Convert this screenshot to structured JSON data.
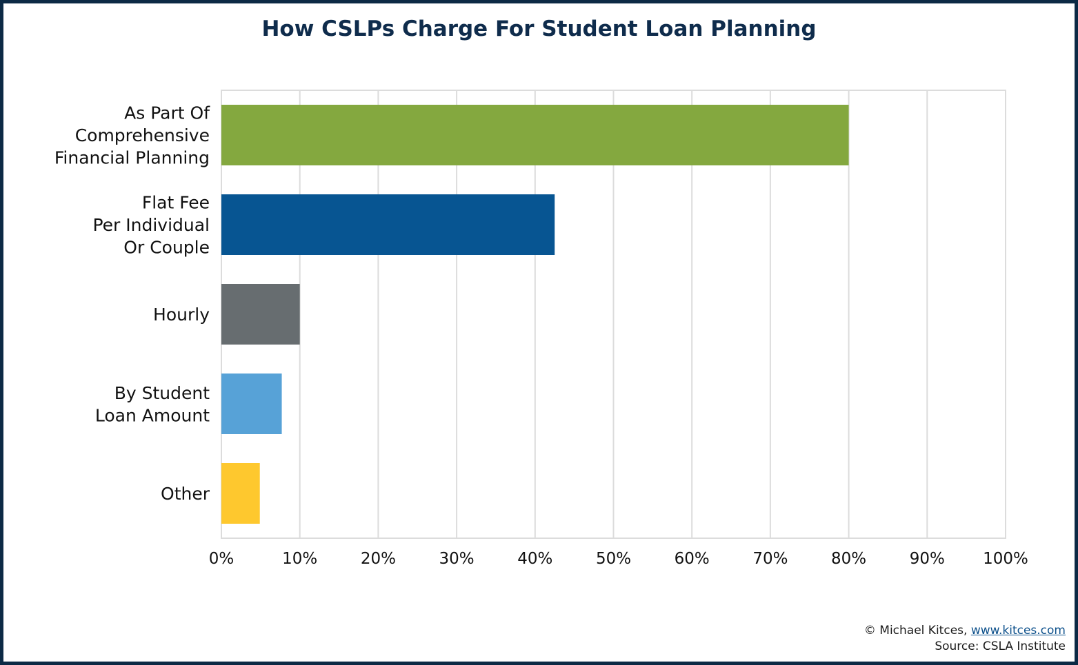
{
  "chart_data": {
    "type": "bar",
    "orientation": "horizontal",
    "title": "How CSLPs Charge For Student Loan Planning",
    "categories": [
      [
        "As Part Of",
        "Comprehensive",
        "Financial Planning"
      ],
      [
        "Flat Fee",
        "Per Individual",
        "Or Couple"
      ],
      [
        "Hourly"
      ],
      [
        "By Student",
        "Loan Amount"
      ],
      [
        "Other"
      ]
    ],
    "values": [
      80,
      42.5,
      10,
      7.7,
      4.9
    ],
    "colors": [
      "#84a83f",
      "#075592",
      "#676d70",
      "#57a2d7",
      "#fec82e"
    ],
    "xlim": [
      0,
      100
    ],
    "xticks": [
      "0%",
      "10%",
      "20%",
      "30%",
      "40%",
      "50%",
      "60%",
      "70%",
      "80%",
      "90%",
      "100%"
    ],
    "grid": true,
    "legend": "none"
  },
  "credit": {
    "prefix": "© Michael Kitces, ",
    "link": "www.kitces.com",
    "source": "Source: CSLA Institute"
  }
}
